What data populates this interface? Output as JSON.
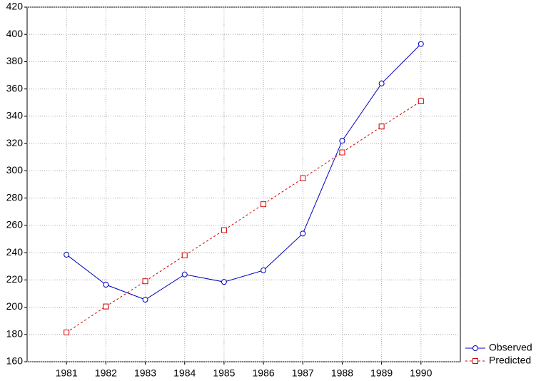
{
  "chart_data": {
    "type": "line",
    "categories": [
      "1981",
      "1982",
      "1983",
      "1984",
      "1985",
      "1986",
      "1987",
      "1988",
      "1989",
      "1990"
    ],
    "series": [
      {
        "name": "Observed",
        "color": "#0000c0",
        "marker": "circle",
        "dash": false,
        "values": [
          238.5,
          216.5,
          205.5,
          224,
          218.5,
          227,
          254,
          322,
          364,
          393
        ]
      },
      {
        "name": "Predicted",
        "color": "#d00000",
        "marker": "square",
        "dash": true,
        "values": [
          181.5,
          200.5,
          219,
          238,
          256.5,
          275.5,
          294.5,
          313.5,
          332.5,
          351
        ]
      }
    ],
    "ylim": [
      160,
      420
    ],
    "yticks": [
      160,
      180,
      200,
      220,
      240,
      260,
      280,
      300,
      320,
      340,
      360,
      380,
      400,
      420
    ],
    "grid": true,
    "legend": "bottom-right"
  }
}
